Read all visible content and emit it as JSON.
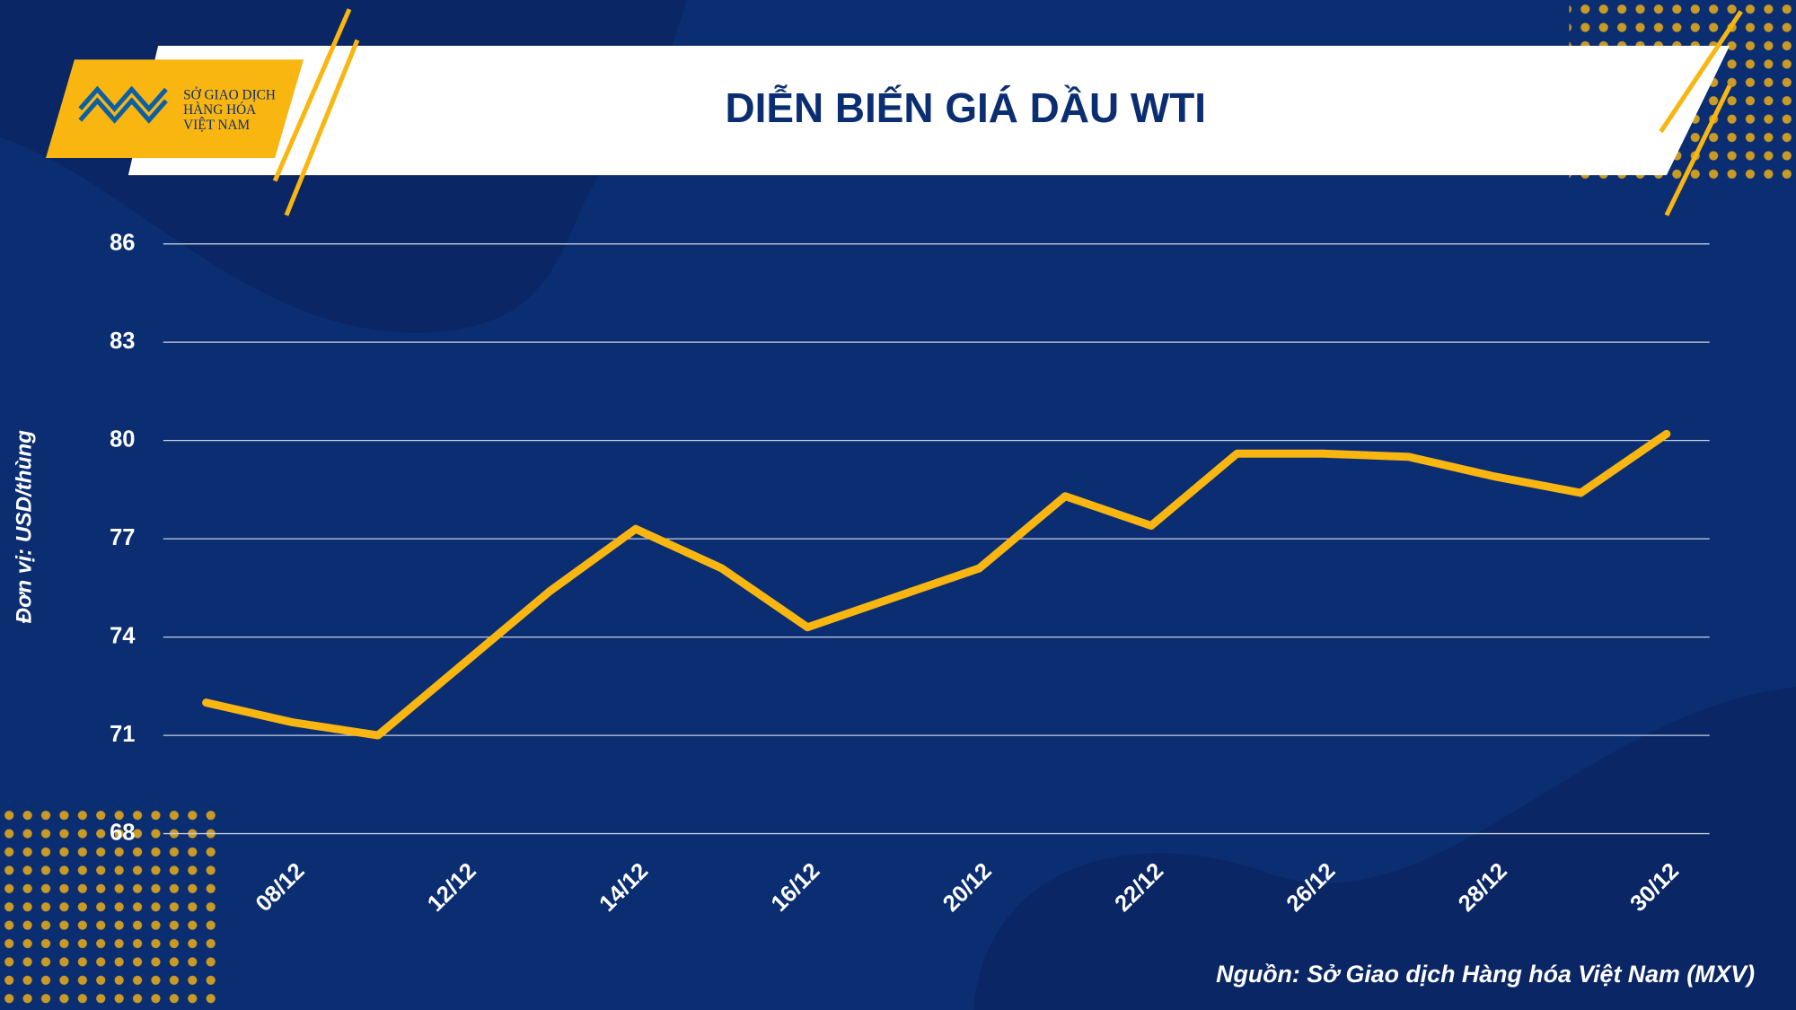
{
  "logo": {
    "lines": [
      "SỞ GIAO DỊCH",
      "HÀNG HÓA",
      "VIỆT NAM"
    ]
  },
  "chart_data": {
    "type": "line",
    "title": "DIỄN BIẾN GIÁ DẦU WTI",
    "y_label": "Đơn vị: USD/thùng",
    "source": "Nguồn: Sở Giao dịch Hàng hóa Việt Nam (MXV)",
    "categories": [
      null,
      "08/12",
      null,
      "12/12",
      null,
      "14/12",
      null,
      "16/12",
      null,
      "20/12",
      null,
      "22/12",
      null,
      "26/12",
      null,
      "28/12",
      null,
      "30/12"
    ],
    "series": [
      {
        "name": "WTI",
        "color": "#f9b611",
        "values": [
          72.0,
          71.4,
          71.0,
          73.2,
          75.4,
          77.3,
          76.1,
          74.3,
          75.2,
          76.1,
          78.3,
          77.4,
          79.6,
          79.6,
          79.5,
          78.9,
          78.4,
          80.2
        ]
      }
    ],
    "ylim": [
      68,
      86
    ],
    "yticks": [
      68,
      71,
      74,
      77,
      80,
      83,
      86
    ],
    "grid": true
  }
}
